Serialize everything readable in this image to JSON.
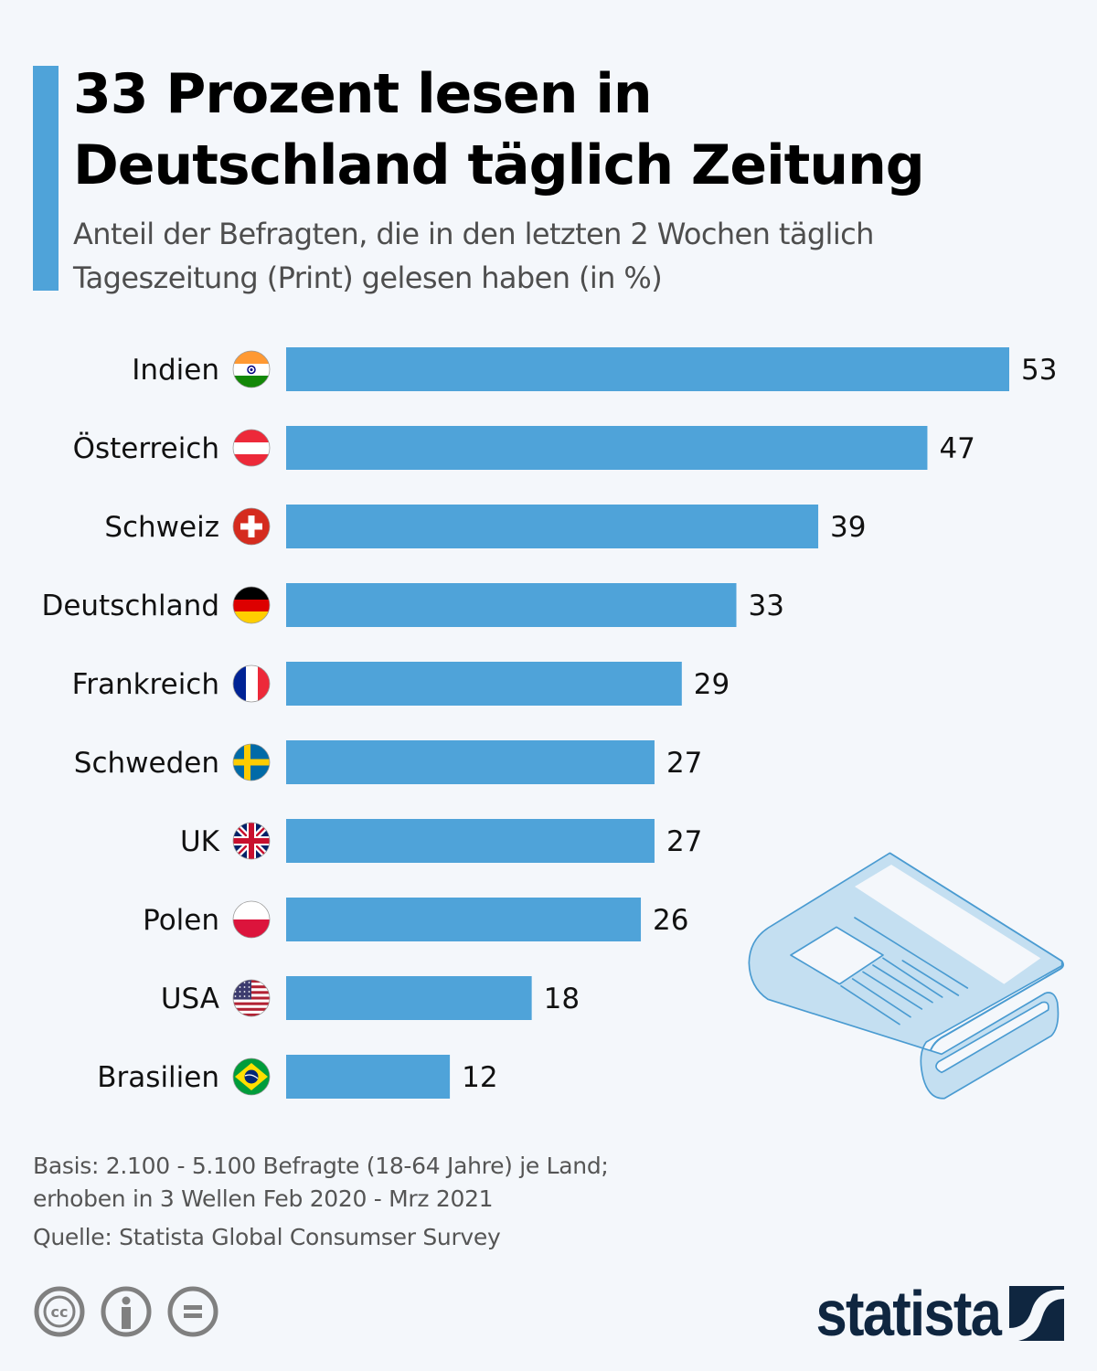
{
  "header": {
    "title_line1": "33 Prozent lesen in",
    "title_line2": "Deutschland täglich Zeitung",
    "subtitle_line1": "Anteil der Befragten, die in den letzten 2 Wochen täglich",
    "subtitle_line2": "Tageszeitung (Print) gelesen haben (in %)"
  },
  "colors": {
    "accent": "#4fa3d9",
    "bar": "#4fa3d9",
    "background": "#f4f7fb",
    "brand": "#0f2640",
    "illustration_fill": "#c4dff1",
    "illustration_stroke": "#4a9bd1"
  },
  "chart_data": {
    "type": "bar",
    "orientation": "horizontal",
    "title": "33 Prozent lesen in Deutschland täglich Zeitung",
    "subtitle": "Anteil der Befragten, die in den letzten 2 Wochen täglich Tageszeitung (Print) gelesen haben (in %)",
    "xlabel": "",
    "ylabel": "",
    "unit": "%",
    "categories": [
      "Indien",
      "Österreich",
      "Schweiz",
      "Deutschland",
      "Frankreich",
      "Schweden",
      "UK",
      "Polen",
      "USA",
      "Brasilien"
    ],
    "flags": [
      "india-flag-icon",
      "austria-flag-icon",
      "switzerland-flag-icon",
      "germany-flag-icon",
      "france-flag-icon",
      "sweden-flag-icon",
      "uk-flag-icon",
      "poland-flag-icon",
      "usa-flag-icon",
      "brazil-flag-icon"
    ],
    "values": [
      53,
      47,
      39,
      33,
      29,
      27,
      27,
      26,
      18,
      12
    ],
    "xlim": [
      0,
      53
    ],
    "grid": false,
    "data_labels": true,
    "legend": "none"
  },
  "footer": {
    "basis_line1": "Basis: 2.100 - 5.100 Befragte (18-64 Jahre) je Land;",
    "basis_line2": "erhoben in 3 Wellen Feb 2020 - Mrz 2021",
    "source": "Quelle: Statista Global Consumser Survey",
    "license_icons": [
      "creative-commons-icon",
      "attribution-icon",
      "no-derivatives-icon"
    ],
    "brand_name": "statista"
  }
}
